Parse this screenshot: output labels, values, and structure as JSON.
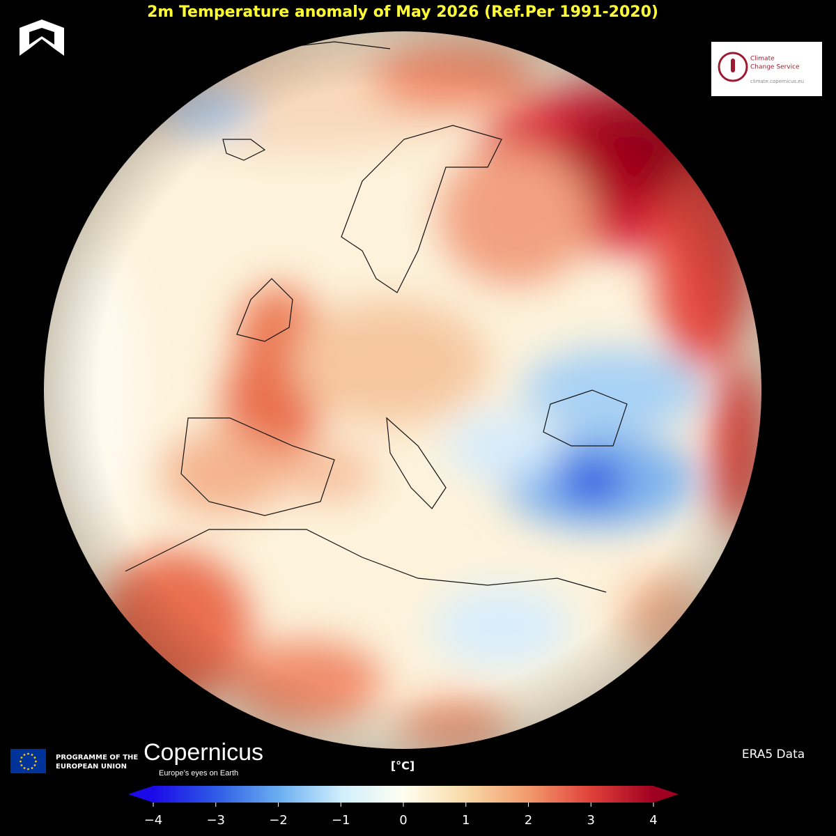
{
  "title": "2m Temperature anomaly of May 2026 (Ref.Per 1991-2020)",
  "logos": {
    "eu_programme": [
      "PROGRAMME OF THE",
      "EUROPEAN UNION"
    ],
    "copernicus": "Copernicus",
    "copernicus_tagline": "Europe’s eyes on Earth",
    "climate_service": [
      "Climate",
      "Change Service"
    ],
    "climate_url": "climate.copernicus.eu"
  },
  "source": "ERA5 Data",
  "colorbar": {
    "unit": "[°C]",
    "lim": [
      -4,
      4
    ],
    "ticks": [
      {
        "value": -4,
        "label": "−4"
      },
      {
        "value": -3,
        "label": "−3"
      },
      {
        "value": -2,
        "label": "−2"
      },
      {
        "value": -1,
        "label": "−1"
      },
      0,
      1,
      2,
      3,
      4
    ],
    "colors": [
      "#1a0ae8",
      "#2f5be6",
      "#6aaef0",
      "#cfeefd",
      "#fffff0",
      "#f9d9a8",
      "#f29b6d",
      "#e0403a",
      "#a00020"
    ]
  }
}
